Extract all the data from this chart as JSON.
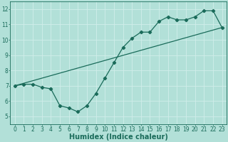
{
  "line1_x": [
    0,
    1,
    2,
    3,
    4,
    5,
    6,
    7,
    8,
    9,
    10,
    11,
    12,
    13,
    14,
    15,
    16,
    17,
    18,
    19,
    20,
    21,
    22,
    23
  ],
  "line1_y": [
    7.0,
    7.1,
    7.1,
    6.9,
    6.8,
    5.7,
    5.55,
    5.3,
    5.7,
    6.5,
    7.5,
    8.5,
    9.5,
    10.1,
    10.5,
    10.5,
    11.2,
    11.5,
    11.3,
    11.3,
    11.5,
    11.9,
    11.9,
    10.8
  ],
  "line2_x": [
    0,
    23
  ],
  "line2_y": [
    7.0,
    10.8
  ],
  "color": "#1a6b5a",
  "bg_color": "#b2e0d8",
  "grid_color": "#d0eeea",
  "xlabel": "Humidex (Indice chaleur)",
  "xlim": [
    -0.5,
    23.5
  ],
  "ylim": [
    4.5,
    12.5
  ],
  "yticks": [
    5,
    6,
    7,
    8,
    9,
    10,
    11,
    12
  ],
  "xticks": [
    0,
    1,
    2,
    3,
    4,
    5,
    6,
    7,
    8,
    9,
    10,
    11,
    12,
    13,
    14,
    15,
    16,
    17,
    18,
    19,
    20,
    21,
    22,
    23
  ],
  "marker": "D",
  "markersize": 2.2,
  "linewidth": 0.9,
  "xlabel_fontsize": 7,
  "tick_fontsize": 5.5
}
